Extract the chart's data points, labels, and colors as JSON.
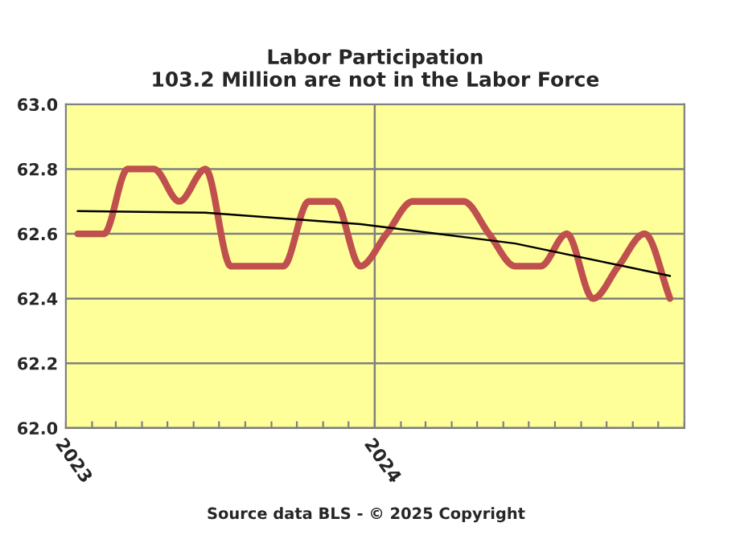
{
  "chart_data": {
    "type": "line",
    "title": "Labor Participation\n103.2 Million are not in the Labor Force",
    "x": [
      "2023-01-15",
      "2023-02-15",
      "2023-03-15",
      "2023-04-15",
      "2023-05-15",
      "2023-06-15",
      "2023-07-15",
      "2023-08-15",
      "2023-09-15",
      "2023-10-15",
      "2023-11-15",
      "2023-12-15",
      "2024-01-15",
      "2024-02-15",
      "2024-03-15",
      "2024-04-15",
      "2024-05-15",
      "2024-06-15",
      "2024-07-15",
      "2024-08-15",
      "2024-09-15",
      "2024-10-15",
      "2024-11-15",
      "2024-12-15"
    ],
    "series": [
      {
        "color": "#c0504d",
        "values": [
          62.6,
          62.6,
          62.8,
          62.8,
          62.7,
          62.8,
          62.5,
          62.5,
          62.5,
          62.7,
          62.7,
          62.5,
          62.6,
          62.7,
          62.7,
          62.7,
          62.6,
          62.5,
          62.5,
          62.6,
          62.4,
          62.5,
          62.6,
          62.4
        ]
      },
      {
        "type": "line",
        "color": "#000000",
        "x": [
          "2023-01-15",
          "2023-06-15",
          "2023-12-15",
          "2024-06-15",
          "2024-12-15"
        ],
        "values": [
          62.67,
          62.665,
          62.63,
          62.57,
          62.47
        ]
      }
    ],
    "xlim": [
      "2023-01-01",
      "2025-01-01"
    ],
    "xticks": [
      {
        "value": "2023-01-01",
        "label": "2023"
      },
      {
        "value": "2023-02-01",
        "label": null
      },
      {
        "value": "2023-03-01",
        "label": null
      },
      {
        "value": "2023-04-01",
        "label": null
      },
      {
        "value": "2023-05-01",
        "label": null
      },
      {
        "value": "2023-06-01",
        "label": null
      },
      {
        "value": "2023-07-01",
        "label": null
      },
      {
        "value": "2023-08-01",
        "label": null
      },
      {
        "value": "2023-09-01",
        "label": null
      },
      {
        "value": "2023-10-01",
        "label": null
      },
      {
        "value": "2023-11-01",
        "label": null
      },
      {
        "value": "2023-12-01",
        "label": null
      },
      {
        "value": "2024-01-01",
        "label": "2024"
      },
      {
        "value": "2024-02-01",
        "label": null
      },
      {
        "value": "2024-03-01",
        "label": null
      },
      {
        "value": "2024-04-01",
        "label": null
      },
      {
        "value": "2024-05-01",
        "label": null
      },
      {
        "value": "2024-06-01",
        "label": null
      },
      {
        "value": "2024-07-01",
        "label": null
      },
      {
        "value": "2024-08-01",
        "label": null
      },
      {
        "value": "2024-09-01",
        "label": null
      },
      {
        "value": "2024-10-01",
        "label": null
      },
      {
        "value": "2024-11-01",
        "label": null
      },
      {
        "value": "2024-12-01",
        "label": null
      },
      {
        "value": "2025-01-01",
        "label": null
      }
    ],
    "ylim": [
      62.0,
      63.0
    ],
    "yticks": [
      {
        "value": 62.0,
        "label": "62.0"
      },
      {
        "value": 62.2,
        "label": "62.2"
      },
      {
        "value": 62.4,
        "label": "62.4"
      },
      {
        "value": 62.6,
        "label": "62.6"
      },
      {
        "value": 62.8,
        "label": "62.8"
      },
      {
        "value": 63.0,
        "label": "63.0"
      }
    ],
    "grid": "y",
    "ref_lines": [
      {
        "axis": "x",
        "value": "2024-01-01",
        "label": null,
        "color": "#808080"
      }
    ],
    "annotations": [
      "Source data BLS - © 2025 Copyright"
    ]
  }
}
